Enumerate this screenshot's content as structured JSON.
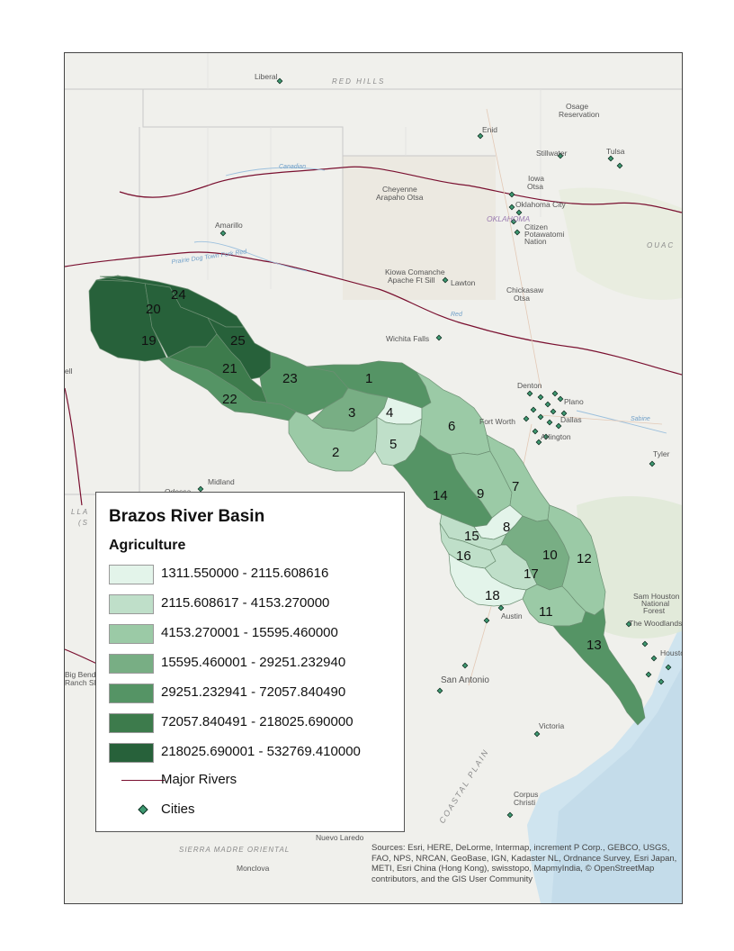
{
  "legend": {
    "title": "Brazos River Basin",
    "subtitle": "Agriculture",
    "classes": [
      {
        "range": "1311.550000 - 2115.608616",
        "color": "#e3f4ea"
      },
      {
        "range": "2115.608617 - 4153.270000",
        "color": "#bfdfc9"
      },
      {
        "range": "4153.270001 - 15595.460000",
        "color": "#9bcaa6"
      },
      {
        "range": "15595.460001 - 29251.232940",
        "color": "#78ae84"
      },
      {
        "range": "29251.232941 - 72057.840490",
        "color": "#559465"
      },
      {
        "range": "72057.840491 - 218025.690000",
        "color": "#3d7b4c"
      },
      {
        "range": "218025.690001 - 532769.410000",
        "color": "#27613a"
      }
    ],
    "rivers_label": "Major Rivers",
    "rivers_color": "#7a1030",
    "cities_label": "Cities",
    "city_marker_color": "#3e9a72"
  },
  "basins": [
    {
      "id": "1",
      "class": 4
    },
    {
      "id": "2",
      "class": 2
    },
    {
      "id": "3",
      "class": 3
    },
    {
      "id": "4",
      "class": 0
    },
    {
      "id": "5",
      "class": 1
    },
    {
      "id": "6",
      "class": 2
    },
    {
      "id": "7",
      "class": 2
    },
    {
      "id": "8",
      "class": 0
    },
    {
      "id": "9",
      "class": 2
    },
    {
      "id": "10",
      "class": 3
    },
    {
      "id": "11",
      "class": 2
    },
    {
      "id": "12",
      "class": 2
    },
    {
      "id": "13",
      "class": 4
    },
    {
      "id": "14",
      "class": 4
    },
    {
      "id": "15",
      "class": 1
    },
    {
      "id": "16",
      "class": 1
    },
    {
      "id": "17",
      "class": 1
    },
    {
      "id": "18",
      "class": 0
    },
    {
      "id": "19",
      "class": 6
    },
    {
      "id": "20",
      "class": 6
    },
    {
      "id": "21",
      "class": 5
    },
    {
      "id": "22",
      "class": 4
    },
    {
      "id": "23",
      "class": 6
    },
    {
      "id": "24",
      "class": 6
    },
    {
      "id": "25",
      "class": 4
    }
  ],
  "places": {
    "liberal": "Liberal",
    "red_hills": "RED HILLS",
    "osage_1": "Osage",
    "osage_2": "Reservation",
    "enid": "Enid",
    "stillwater": "Stillwater",
    "tulsa": "Tulsa",
    "canadian": "Canadian",
    "cheyenne_1": "Cheyenne",
    "cheyenne_2": "Arapaho Otsa",
    "iowa_1": "Iowa",
    "iowa_2": "Otsa",
    "oklahoma_city": "Oklahoma City",
    "oklahoma": "OKLAHOMA",
    "citizen_1": "Citizen",
    "citizen_2": "Potawatomi",
    "citizen_3": "Nation",
    "ouac": "OUAC",
    "amarillo": "Amarillo",
    "prairie_dog": "Prairie Dog Town Fork Red",
    "kiowa_1": "Kiowa Comanche",
    "kiowa_2": "Apache Ft Sill",
    "lawton": "Lawton",
    "chickasaw_1": "Chickasaw",
    "chickasaw_2": "Otsa",
    "red": "Red",
    "wichita_falls": "Wichita Falls",
    "denton": "Denton",
    "plano": "Plano",
    "fort_worth": "Fort Worth",
    "dallas": "Dallas",
    "arlington": "Arlington",
    "sabine": "Sabine",
    "tyler": "Tyler",
    "midland": "Midland",
    "odessa": "Odessa",
    "lla": "LLA",
    "s_paren": "(S",
    "sam_houston_1": "Sam Houston",
    "sam_houston_2": "National",
    "sam_houston_3": "Forest",
    "the_woodlands": "The Woodlands",
    "austin": "Austin",
    "houston": "Houston",
    "big_bend_1": "Big Bend",
    "big_bend_2": "Ranch SP",
    "san_antonio": "San Antonio",
    "victoria": "Victoria",
    "coastal_plain": "COASTAL PLAIN",
    "corpus_1": "Corpus",
    "corpus_2": "Christi",
    "nuevo_laredo": "Nuevo Laredo",
    "sierra_madre": "SIERRA MADRE ORIENTAL",
    "monclova": "Monclova",
    "ell": "ell"
  },
  "attribution": "Sources: Esri, HERE, DeLorme, Intermap, increment P Corp., GEBCO, USGS, FAO, NPS, NRCAN, GeoBase, IGN, Kadaster NL, Ordnance Survey, Esri Japan, METI, Esri China (Hong Kong), swisstopo, MapmyIndia, © OpenStreetMap contributors, and the GIS User Community"
}
